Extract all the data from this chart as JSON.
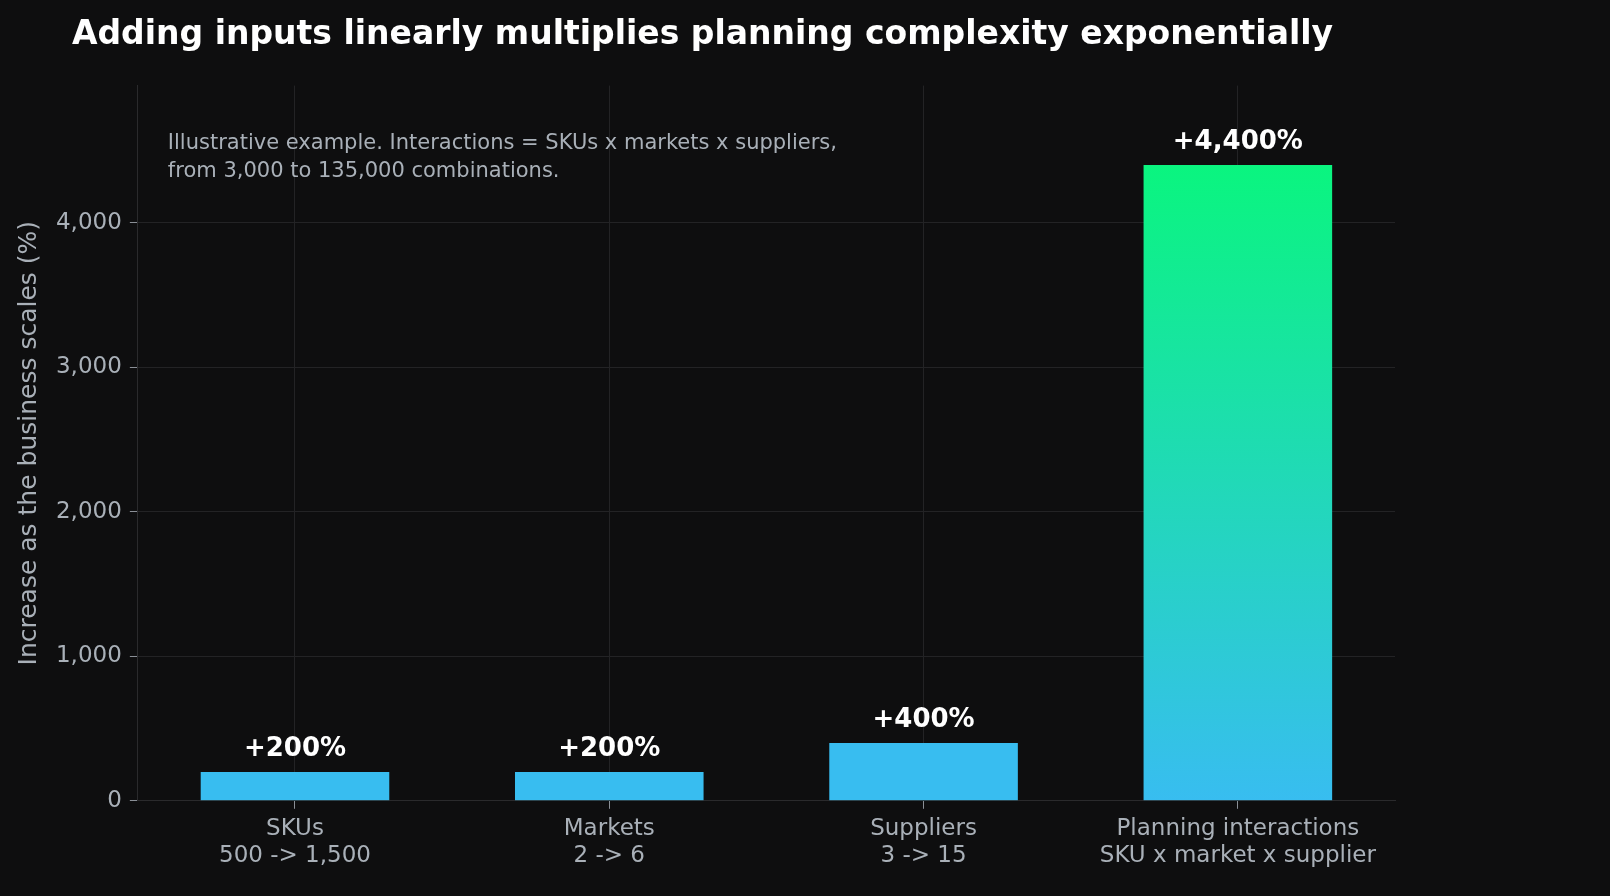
{
  "chart_data": {
    "type": "bar",
    "title": "Adding inputs linearly multiplies planning complexity exponentially",
    "ylabel": "Increase as the business scales (%)",
    "categories": [
      "SKUs\n500 -> 1,500",
      "Markets\n2 -> 6",
      "Suppliers\n3 -> 15",
      "Planning interactions\nSKU x market x supplier"
    ],
    "values": [
      200,
      200,
      400,
      4400
    ],
    "colors": [
      "#38bdf0",
      "#38bdf0",
      "#38bdf0",
      "#0af57f"
    ],
    "value_labels": [
      "+200%",
      "+200%",
      "+400%",
      "+4,400%"
    ],
    "ylim": [
      0,
      4950
    ],
    "yticks": [
      0,
      {
        "value": 1000,
        "label": "1,000"
      },
      {
        "value": 2000,
        "label": "2,000"
      },
      {
        "value": 3000,
        "label": "3,000"
      },
      {
        "value": 4000,
        "label": "4,000"
      }
    ],
    "grid": true,
    "annotations": [
      "Illustrative example. Interactions = SKUs x markets x suppliers,\nfrom 3,000 to 135,000 combinations."
    ]
  }
}
